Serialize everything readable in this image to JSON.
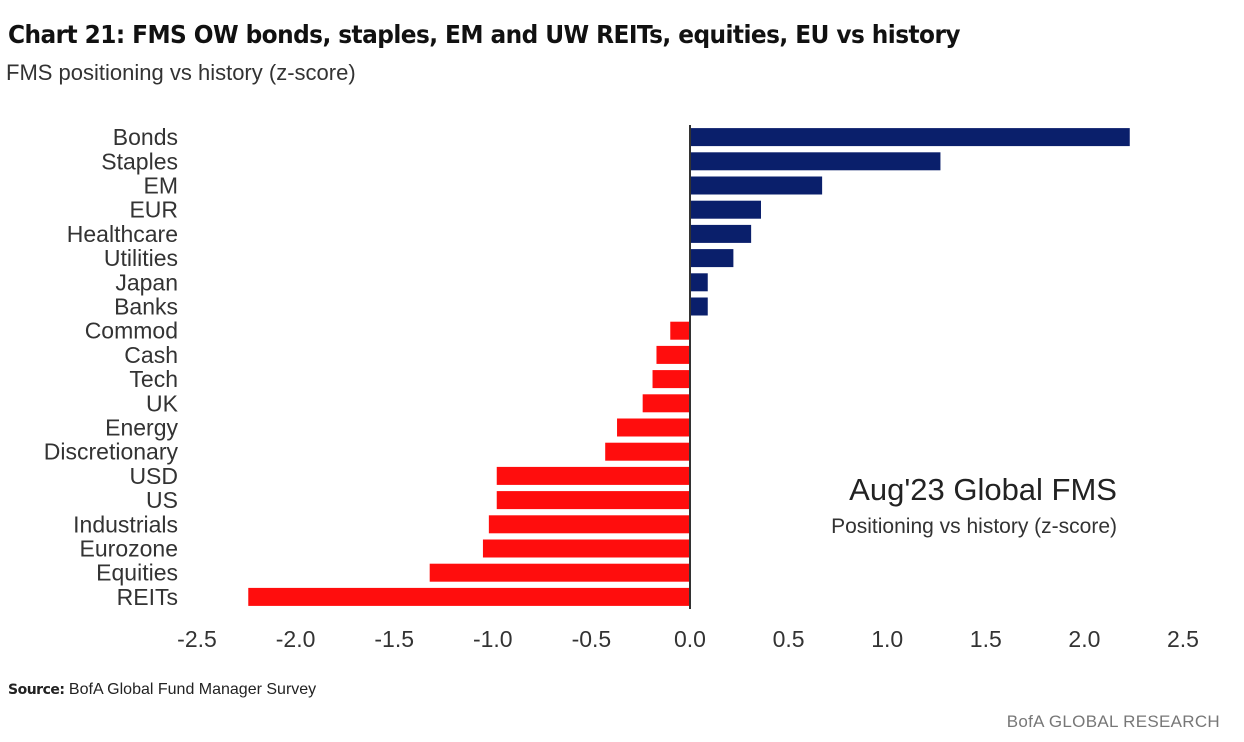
{
  "chart_data": {
    "type": "bar",
    "orientation": "horizontal",
    "title": "Chart 21: FMS OW bonds, staples, EM and UW REITs, equities, EU vs history",
    "subtitle": "FMS positioning vs history (z-score)",
    "categories": [
      "Bonds",
      "Staples",
      "EM",
      "EUR",
      "Healthcare",
      "Utilities",
      "Japan",
      "Banks",
      "Commod",
      "Cash",
      "Tech",
      "UK",
      "Energy",
      "Discretionary",
      "USD",
      "US",
      "Industrials",
      "Eurozone",
      "Equities",
      "REITs"
    ],
    "values": [
      2.23,
      1.27,
      0.67,
      0.36,
      0.31,
      0.22,
      0.09,
      0.09,
      -0.1,
      -0.17,
      -0.19,
      -0.24,
      -0.37,
      -0.43,
      -0.98,
      -0.98,
      -1.02,
      -1.05,
      -1.32,
      -2.24
    ],
    "xlim": [
      -2.5,
      2.5
    ],
    "xticks": [
      "-2.5",
      "-2.0",
      "-1.5",
      "-1.0",
      "-0.5",
      "0.0",
      "0.5",
      "1.0",
      "1.5",
      "2.0",
      "2.5"
    ],
    "annotation": {
      "title": "Aug'23 Global FMS",
      "subtitle": "Positioning vs history (z-score)"
    },
    "grid": false,
    "colors": {
      "positive": "#0a1f6b",
      "negative": "#ff0d0d",
      "axis": "#333333"
    }
  },
  "footer": {
    "source_label": "Source:",
    "source_text": "BofA Global Fund Manager Survey",
    "brand": "BofA GLOBAL RESEARCH"
  }
}
